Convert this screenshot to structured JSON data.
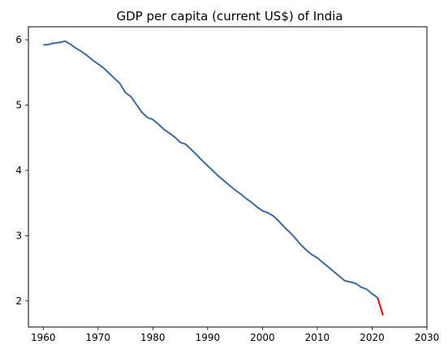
{
  "chart_data": {
    "type": "line",
    "title": "GDP per capita (current US$) of India",
    "xlabel": "",
    "ylabel": "",
    "xlim": [
      1957.3,
      2030
    ],
    "ylim": [
      1.6,
      6.2
    ],
    "x_ticks": [
      1960,
      1970,
      1980,
      1990,
      2000,
      2010,
      2020,
      2030
    ],
    "y_ticks": [
      2,
      3,
      4,
      5,
      6
    ],
    "grid": false,
    "series": [
      {
        "color": "#3b6aa0",
        "x": [
          1960,
          1961,
          1962,
          1963,
          1964,
          1965,
          1966,
          1967,
          1968,
          1969,
          1970,
          1971,
          1972,
          1973,
          1974,
          1975,
          1976,
          1977,
          1978,
          1979,
          1980,
          1981,
          1982,
          1983,
          1984,
          1985,
          1986,
          1987,
          1988,
          1989,
          1990,
          1991,
          1992,
          1993,
          1994,
          1995,
          1996,
          1997,
          1998,
          1999,
          2000,
          2001,
          2002,
          2003,
          2004,
          2005,
          2006,
          2007,
          2008,
          2009,
          2010,
          2011,
          2012,
          2013,
          2014,
          2015,
          2016,
          2017,
          2018,
          2019,
          2020,
          2021
        ],
        "values": [
          5.92,
          5.93,
          5.95,
          5.96,
          5.98,
          5.93,
          5.87,
          5.82,
          5.76,
          5.69,
          5.63,
          5.57,
          5.49,
          5.41,
          5.33,
          5.19,
          5.13,
          5.01,
          4.89,
          4.81,
          4.78,
          4.71,
          4.63,
          4.57,
          4.51,
          4.43,
          4.4,
          4.32,
          4.24,
          4.15,
          4.07,
          3.99,
          3.91,
          3.84,
          3.77,
          3.7,
          3.64,
          3.57,
          3.51,
          3.44,
          3.38,
          3.35,
          3.3,
          3.22,
          3.13,
          3.05,
          2.96,
          2.86,
          2.78,
          2.71,
          2.66,
          2.59,
          2.52,
          2.45,
          2.38,
          2.31,
          2.29,
          2.27,
          2.21,
          2.18,
          2.11,
          2.05
        ]
      },
      {
        "color": "#ff0000",
        "x": [
          2021,
          2022
        ],
        "values": [
          2.05,
          1.78
        ]
      }
    ]
  }
}
